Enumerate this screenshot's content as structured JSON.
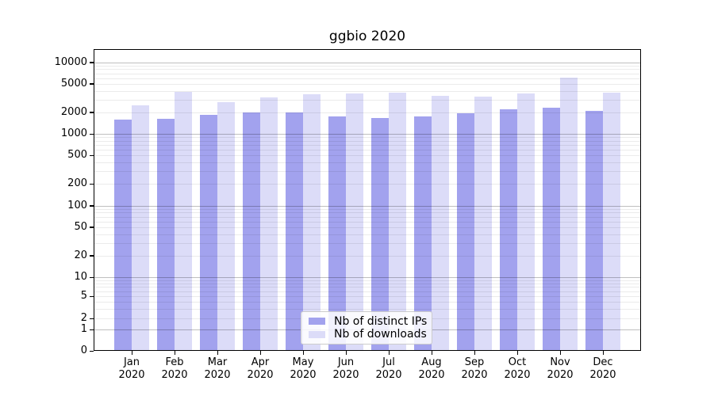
{
  "chart_data": {
    "type": "bar",
    "title": "ggbio 2020",
    "categories": [
      "Jan 2020",
      "Feb 2020",
      "Mar 2020",
      "Apr 2020",
      "May 2020",
      "Jun 2020",
      "Jul 2020",
      "Aug 2020",
      "Sep 2020",
      "Oct 2020",
      "Nov 2020",
      "Dec 2020"
    ],
    "series": [
      {
        "name": "Nb of distinct IPs",
        "color": "#a2a2ee",
        "values": [
          1600,
          1640,
          1840,
          1970,
          2000,
          1760,
          1670,
          1740,
          1940,
          2220,
          2310,
          2110
        ]
      },
      {
        "name": "Nb of downloads",
        "color": "#dcdcf8",
        "values": [
          2520,
          3900,
          2770,
          3200,
          3540,
          3630,
          3800,
          3420,
          3300,
          3700,
          6040,
          3800
        ]
      }
    ],
    "yscale": "symlog",
    "yticks": [
      0,
      1,
      2,
      5,
      10,
      20,
      50,
      100,
      200,
      500,
      1000,
      2000,
      5000,
      10000
    ],
    "ylim": [
      0,
      15000
    ],
    "xlabel": "",
    "ylabel": "",
    "grid": true,
    "legend_position": "lower center"
  },
  "colors": {
    "background": "#ffffff",
    "axis": "#000000",
    "grid_major": "#b0b0b0",
    "grid_minor": "#e6e6e6",
    "legend_border": "#cccccc",
    "text": "#000000"
  }
}
